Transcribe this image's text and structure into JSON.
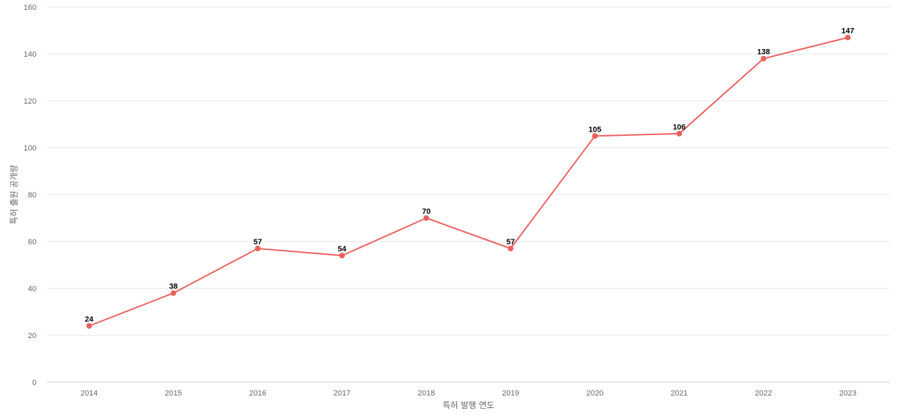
{
  "chart_data": {
    "type": "line",
    "xlabel": "특허 발행 연도",
    "ylabel": "특허 출원 공개량",
    "categories": [
      "2014",
      "2015",
      "2016",
      "2017",
      "2018",
      "2019",
      "2020",
      "2021",
      "2022",
      "2023"
    ],
    "series": [
      {
        "values": [
          24,
          38,
          57,
          54,
          70,
          57,
          105,
          106,
          138,
          147
        ],
        "color": "#ec5f5c"
      }
    ],
    "ylim": [
      0,
      160
    ],
    "yticks": [
      0,
      20,
      40,
      60,
      80,
      100,
      120,
      140,
      160
    ],
    "grid": true,
    "legend": "none"
  }
}
